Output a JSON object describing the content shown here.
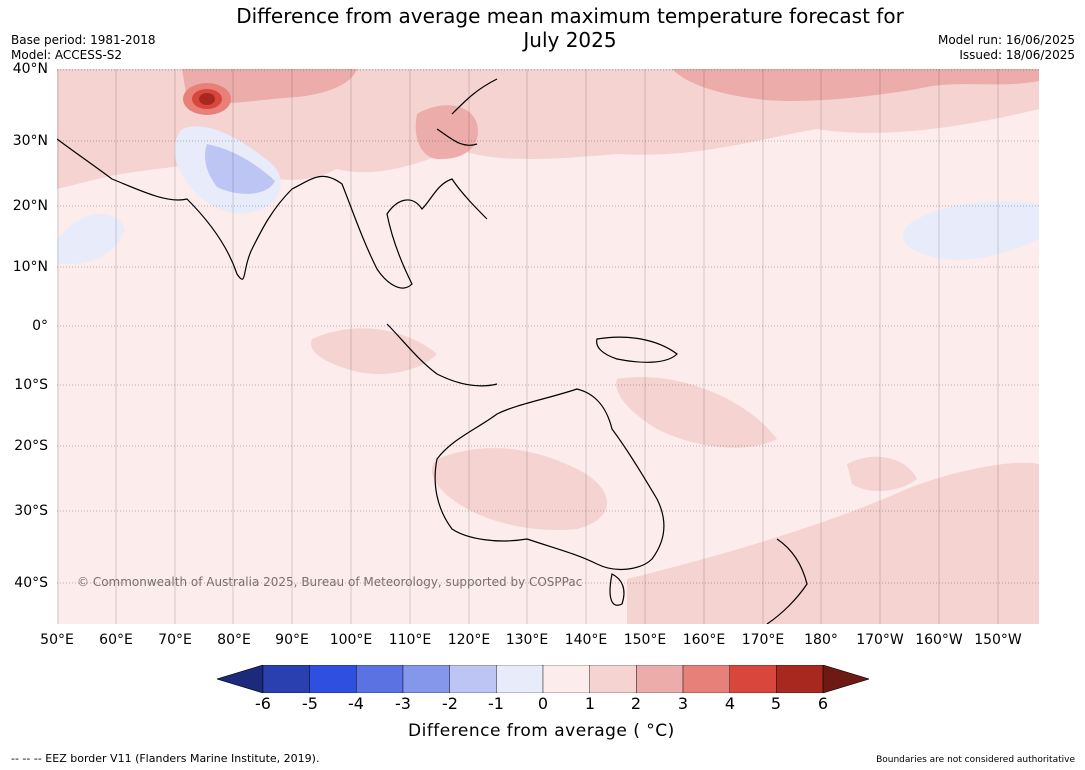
{
  "header": {
    "title_line1": "Difference from average mean maximum temperature forecast for",
    "title_line2": "July 2025",
    "base_period": "Base period: 1981-2018",
    "model": "Model: ACCESS-S2",
    "model_run": "Model run: 16/06/2025",
    "issued": "Issued: 18/06/2025"
  },
  "map": {
    "lat_labels": [
      "40°N",
      "30°N",
      "20°N",
      "10°N",
      "0°",
      "10°S",
      "20°S",
      "30°S",
      "40°S"
    ],
    "lon_labels": [
      "50°E",
      "60°E",
      "70°E",
      "80°E",
      "90°E",
      "100°E",
      "110°E",
      "120°E",
      "130°E",
      "140°E",
      "150°E",
      "160°E",
      "170°E",
      "180°",
      "170°W",
      "160°W",
      "150°W"
    ],
    "copyright": "© Commonwealth of Australia 2025, Bureau of Meteorology, supported by COSPPac",
    "background_color": "#fcecec"
  },
  "colorbar": {
    "ticks": [
      "-6",
      "-5",
      "-4",
      "-3",
      "-2",
      "-1",
      "0",
      "1",
      "2",
      "3",
      "4",
      "5",
      "6"
    ],
    "colors": [
      "#1b2a7a",
      "#2a3fb0",
      "#2f4fe0",
      "#5a72e2",
      "#8597ea",
      "#bcc5f4",
      "#e8ebfa",
      "#fcecec",
      "#f4d3d1",
      "#ecacaa",
      "#e8807a",
      "#d9463c",
      "#a8281f",
      "#6e1a14"
    ],
    "label": "Difference from average ( °C)"
  },
  "footer": {
    "eez_note": "--  --  -- EEZ border V11 (Flanders Marine Institute, 2019).",
    "boundaries_note": "Boundaries are not considered authoritative"
  }
}
